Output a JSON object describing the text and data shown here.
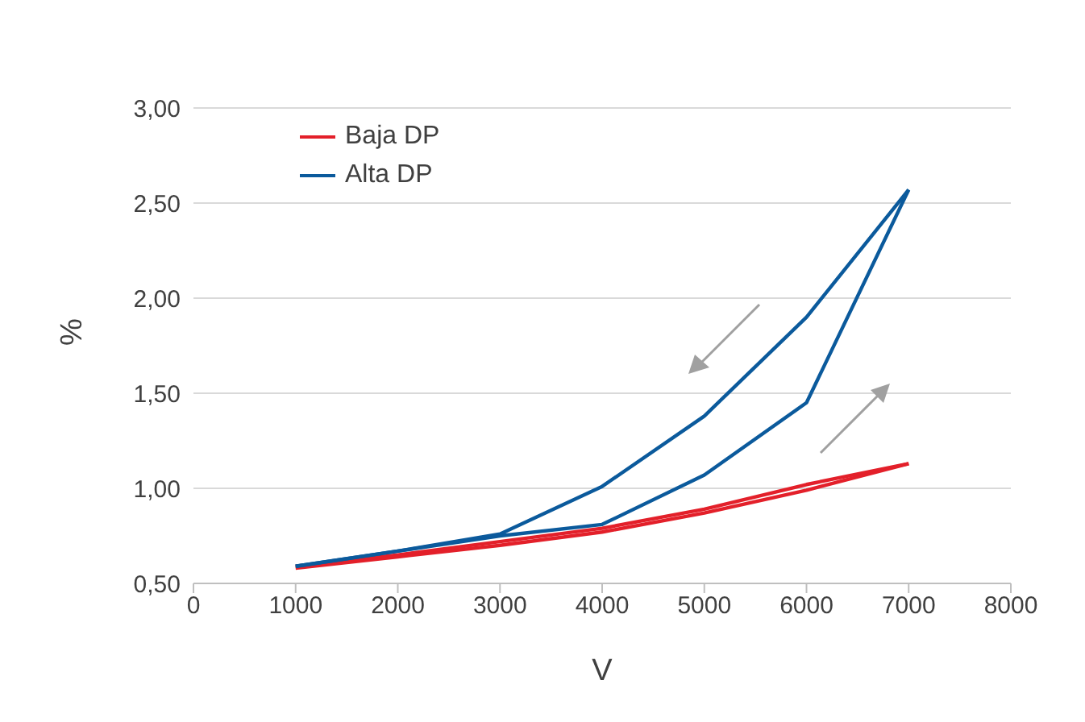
{
  "chart_data": {
    "type": "line",
    "xlabel": "V",
    "ylabel": "%",
    "xlim": [
      0,
      8000
    ],
    "xticks": [
      0,
      1000,
      2000,
      3000,
      4000,
      5000,
      6000,
      7000,
      8000
    ],
    "ylim": [
      0.5,
      3.0
    ],
    "yticks": [
      {
        "value": 0.5,
        "label": "0,50"
      },
      {
        "value": 1.0,
        "label": "1,00"
      },
      {
        "value": 1.5,
        "label": "1,50"
      },
      {
        "value": 2.0,
        "label": "2,00"
      },
      {
        "value": 2.5,
        "label": "2,50"
      },
      {
        "value": 3.0,
        "label": "3,00"
      }
    ],
    "grid": "y",
    "legend": "top left",
    "marker": "none",
    "line_style": "solid",
    "series": [
      {
        "name": "Baja DP",
        "color": "#e3202a",
        "x": [
          1000,
          2000,
          3000,
          4000,
          5000,
          6000,
          7000
        ],
        "values": [
          0.58,
          0.64,
          0.7,
          0.77,
          0.87,
          0.99,
          1.13
        ]
      },
      {
        "color": "#e3202a",
        "x": [
          1000,
          2000,
          3000,
          4000,
          5000,
          6000,
          7000
        ],
        "values": [
          0.59,
          0.65,
          0.72,
          0.79,
          0.89,
          1.02,
          1.13
        ]
      },
      {
        "name": "Alta DP",
        "color": "#0b5a9c",
        "x": [
          1000,
          2000,
          3000,
          4000,
          5000,
          6000,
          7000
        ],
        "values": [
          0.59,
          0.67,
          0.75,
          0.81,
          1.07,
          1.45,
          2.57
        ]
      },
      {
        "color": "#0b5a9c",
        "x": [
          1000,
          2000,
          3000,
          4000,
          5000,
          6000,
          7000
        ],
        "values": [
          0.59,
          0.67,
          0.76,
          1.01,
          1.38,
          1.9,
          2.57
        ]
      }
    ]
  }
}
